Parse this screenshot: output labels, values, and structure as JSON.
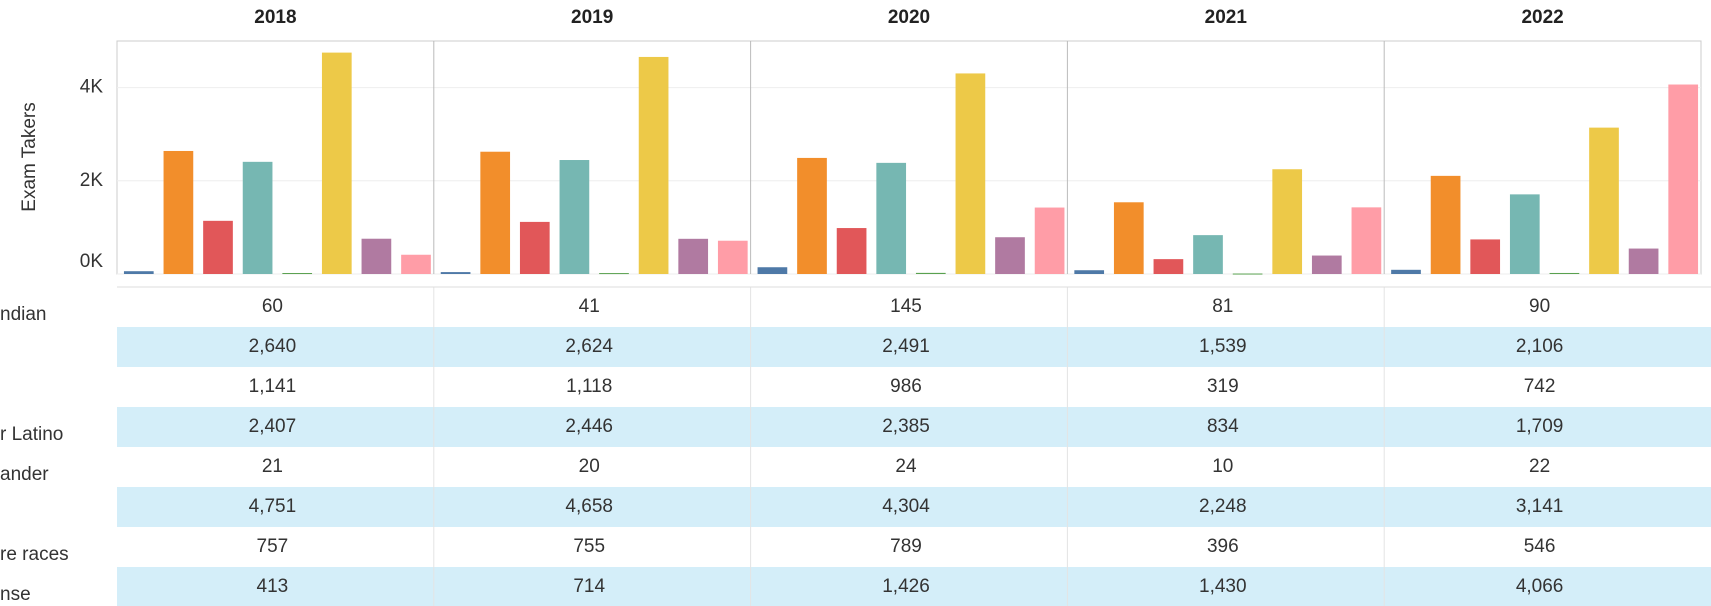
{
  "chart_data": {
    "type": "bar",
    "y_label": "Exam Takers",
    "categories": [
      "2018",
      "2019",
      "2020",
      "2021",
      "2022"
    ],
    "row_labels": [
      "ndian",
      null,
      null,
      "r Latino",
      "ander",
      null,
      "re races",
      "nse"
    ],
    "ylim": [
      0,
      5000
    ],
    "yticks": [
      {
        "value": 0,
        "label": "0K"
      },
      {
        "value": 2000,
        "label": "2K"
      },
      {
        "value": 4000,
        "label": "4K"
      }
    ],
    "grid": true,
    "series": [
      {
        "color": "#4e79a7",
        "values": [
          60,
          41,
          145,
          81,
          90
        ],
        "value_labels": [
          "60",
          "41",
          "145",
          "81",
          "90"
        ]
      },
      {
        "color": "#f28e2b",
        "values": [
          2640,
          2624,
          2491,
          1539,
          2106
        ],
        "value_labels": [
          "2,640",
          "2,624",
          "2,491",
          "1,539",
          "2,106"
        ]
      },
      {
        "color": "#e15759",
        "values": [
          1141,
          1118,
          986,
          319,
          742
        ],
        "value_labels": [
          "1,141",
          "1,118",
          "986",
          "319",
          "742"
        ]
      },
      {
        "color": "#76b7b2",
        "values": [
          2407,
          2446,
          2385,
          834,
          1709
        ],
        "value_labels": [
          "2,407",
          "2,446",
          "2,385",
          "834",
          "1,709"
        ]
      },
      {
        "color": "#59a14f",
        "values": [
          21,
          20,
          24,
          10,
          22
        ],
        "value_labels": [
          "21",
          "20",
          "24",
          "10",
          "22"
        ]
      },
      {
        "color": "#edc948",
        "values": [
          4751,
          4658,
          4304,
          2248,
          3141
        ],
        "value_labels": [
          "4,751",
          "4,658",
          "4,304",
          "2,248",
          "3,141"
        ]
      },
      {
        "color": "#b07aa1",
        "values": [
          757,
          755,
          789,
          396,
          546
        ],
        "value_labels": [
          "757",
          "755",
          "789",
          "396",
          "546"
        ]
      },
      {
        "color": "#ff9da7",
        "values": [
          413,
          714,
          1426,
          1430,
          4066
        ],
        "value_labels": [
          "413",
          "714",
          "1,426",
          "1,430",
          "4,066"
        ]
      }
    ]
  }
}
